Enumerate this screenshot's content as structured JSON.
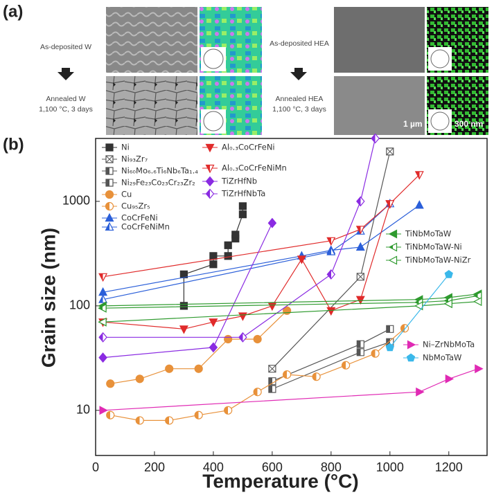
{
  "panel_labels": [
    "(a)",
    "(b)"
  ],
  "panel_a": {
    "left": {
      "top": "As-deposited W",
      "bottom": "Annealed W",
      "condition": "1,100 °C, 3 days"
    },
    "right": {
      "top": "As-deposited HEA",
      "bottom": "Annealed HEA",
      "condition": "1,100 °C, 3 days",
      "scale_1": "1 µm",
      "scale_2": "300 nm"
    }
  },
  "chart_data": {
    "type": "line",
    "x_label": "Temperature (°C)",
    "y_label": "Grain size (nm)",
    "log_y": true,
    "xlim": [
      0,
      1330
    ],
    "xticks": [
      0,
      200,
      400,
      600,
      800,
      1000,
      1200
    ],
    "ylim": [
      3.7,
      4000
    ],
    "yticks": [
      10,
      100,
      1000
    ],
    "series": [
      {
        "name": "Ni",
        "color": "#333333",
        "marker": "square",
        "fill": "full",
        "x": [
          300,
          300,
          400,
          400,
          450,
          450,
          475,
          475,
          500,
          500
        ],
        "values": [
          100,
          200,
          250,
          300,
          300,
          380,
          440,
          480,
          750,
          900
        ]
      },
      {
        "name": "Ni₉₃Zr₇",
        "color": "#555555",
        "marker": "square",
        "fill": "cross",
        "x": [
          600,
          900,
          1000
        ],
        "values": [
          25,
          190,
          3000
        ]
      },
      {
        "name": "Ni₆₀Mo₆.₆Ti₆Nb₆Ta₁.₄",
        "color": "#555555",
        "marker": "square",
        "fill": "half",
        "x": [
          600,
          900,
          1000
        ],
        "values": [
          16,
          36,
          45
        ]
      },
      {
        "name": "Ni₂₉Fe₂₃Co₂₃Cr₂₃Zr₂",
        "color": "#555555",
        "marker": "square",
        "fill": "half",
        "x": [
          600,
          900,
          1000
        ],
        "values": [
          19,
          43,
          60
        ]
      },
      {
        "name": "Cu",
        "color": "#e8913a",
        "marker": "circle",
        "fill": "full",
        "x": [
          50,
          150,
          250,
          350,
          450,
          550,
          650
        ],
        "values": [
          18,
          20,
          25,
          25,
          48,
          48,
          90
        ]
      },
      {
        "name": "Cu₉₅Zr₅",
        "color": "#e8913a",
        "marker": "circle",
        "fill": "half",
        "x": [
          50,
          150,
          250,
          350,
          450,
          550,
          650,
          750,
          850,
          950,
          1050
        ],
        "values": [
          9,
          8,
          8,
          9,
          10,
          15,
          22,
          21,
          27,
          35,
          61
        ]
      },
      {
        "name": "CoCrFeNi",
        "color": "#2b5fd9",
        "marker": "tri-up",
        "fill": "full",
        "x": [
          25,
          700,
          800,
          900,
          1100
        ],
        "values": [
          135,
          300,
          340,
          365,
          920
        ]
      },
      {
        "name": "CoCrFeNiMn",
        "color": "#2b5fd9",
        "marker": "tri-up",
        "fill": "half",
        "x": [
          25,
          800,
          900,
          1000
        ],
        "values": [
          115,
          330,
          520,
          950
        ]
      },
      {
        "name": "Al₀.₃CoCrFeNi",
        "color": "#e02a2a",
        "marker": "tri-down",
        "fill": "full",
        "x": [
          25,
          300,
          400,
          500,
          600,
          700,
          800,
          900,
          1000
        ],
        "values": [
          70,
          60,
          70,
          80,
          100,
          280,
          90,
          115,
          950
        ]
      },
      {
        "name": "Al₀.₃CoCrFeNiMn",
        "color": "#e02a2a",
        "marker": "tri-down",
        "fill": "half",
        "x": [
          25,
          800,
          900,
          1000,
          1100
        ],
        "values": [
          190,
          420,
          540,
          950,
          1800
        ]
      },
      {
        "name": "TiZrHfNb",
        "color": "#8a2be2",
        "marker": "diamond",
        "fill": "full",
        "x": [
          25,
          400,
          600
        ],
        "values": [
          32,
          40,
          620
        ]
      },
      {
        "name": "TiZrHfNbTa",
        "color": "#8a2be2",
        "marker": "diamond",
        "fill": "half",
        "x": [
          25,
          500,
          800,
          900,
          950
        ],
        "values": [
          50,
          50,
          200,
          1000,
          4000
        ]
      },
      {
        "name": "TiNbMoTaW",
        "color": "#2e9a2e",
        "marker": "tri-left",
        "fill": "full",
        "x": [
          25,
          1100,
          1200,
          1300
        ],
        "values": [
          100,
          115,
          120,
          130
        ]
      },
      {
        "name": "TiNbMoTaW-Ni",
        "color": "#2e9a2e",
        "marker": "tri-left",
        "fill": "half",
        "x": [
          25,
          1100,
          1200,
          1300
        ],
        "values": [
          95,
          108,
          112,
          125
        ]
      },
      {
        "name": "TiNbMoTaW-NiZr",
        "color": "#2e9a2e",
        "marker": "tri-left",
        "fill": "open",
        "x": [
          25,
          1100,
          1200,
          1300
        ],
        "values": [
          70,
          100,
          105,
          110
        ]
      },
      {
        "name": "Ni–ZrNbMoTa",
        "color": "#e02ab4",
        "marker": "tri-right",
        "fill": "full",
        "x": [
          25,
          1100,
          1200,
          1300
        ],
        "values": [
          10,
          15,
          20,
          25
        ]
      },
      {
        "name": "NbMoTaW",
        "color": "#3ab8ea",
        "marker": "pentagon",
        "fill": "full",
        "x": [
          1000,
          1200
        ],
        "values": [
          40,
          200
        ]
      }
    ]
  }
}
